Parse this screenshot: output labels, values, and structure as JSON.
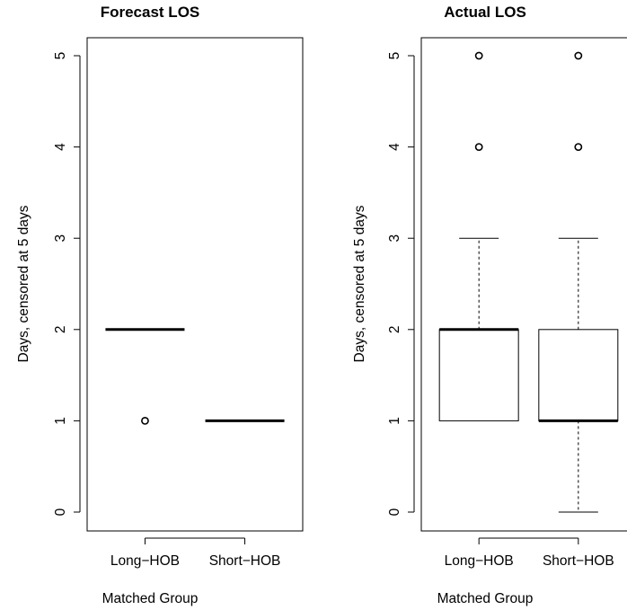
{
  "chart_data": [
    {
      "type": "box",
      "title": "Forecast LOS",
      "xlabel": "Matched Group",
      "ylabel": "Days, censored at 5 days",
      "ylim": [
        0,
        5
      ],
      "yticks": [
        0,
        1,
        2,
        3,
        4,
        5
      ],
      "categories": [
        "Long−HOB",
        "Short−HOB"
      ],
      "boxes": [
        {
          "min": 2,
          "q1": 2,
          "median": 2,
          "q3": 2,
          "max": 2,
          "outliers": [
            1
          ]
        },
        {
          "min": 1,
          "q1": 1,
          "median": 1,
          "q3": 1,
          "max": 1,
          "outliers": []
        }
      ]
    },
    {
      "type": "box",
      "title": "Actual LOS",
      "xlabel": "Matched Group",
      "ylabel": "Days, censored at 5 days",
      "ylim": [
        0,
        5
      ],
      "yticks": [
        0,
        1,
        2,
        3,
        4,
        5
      ],
      "categories": [
        "Long−HOB",
        "Short−HOB"
      ],
      "boxes": [
        {
          "min": 1,
          "q1": 1,
          "median": 2,
          "q3": 2,
          "max": 3,
          "outliers": [
            4,
            5
          ]
        },
        {
          "min": 0,
          "q1": 1,
          "median": 1,
          "q3": 2,
          "max": 3,
          "outliers": [
            4,
            5
          ]
        }
      ]
    }
  ]
}
